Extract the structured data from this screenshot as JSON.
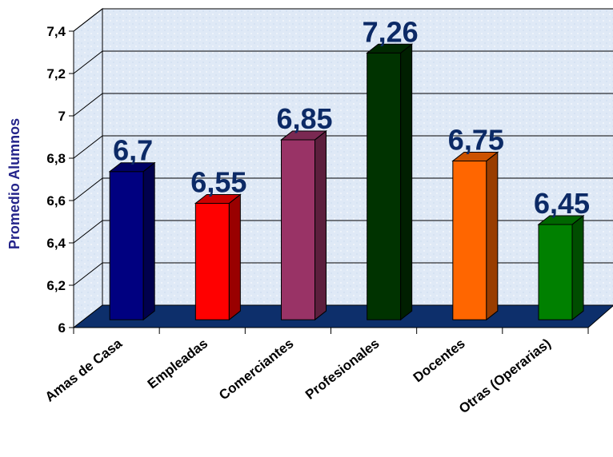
{
  "chart_data": {
    "type": "bar",
    "categories": [
      "Amas de Casa",
      "Empleadas",
      "Comerciantes",
      "Profesionales",
      "Docentes",
      "Otras (Operarias)"
    ],
    "values": [
      6.7,
      6.55,
      6.85,
      7.26,
      6.75,
      6.45
    ],
    "data_labels": [
      "6,7",
      "6,55",
      "6,85",
      "7,26",
      "6,75",
      "6,45"
    ],
    "ylabel": "Promedio Alumnos",
    "xlabel": "",
    "title": "",
    "ylim": [
      6,
      7.4
    ],
    "yticks": [
      6,
      6.2,
      6.4,
      6.6,
      6.8,
      7,
      7.2,
      7.4
    ],
    "ytick_labels": [
      "6",
      "6,2",
      "6,4",
      "6,6",
      "6,8",
      "7",
      "7,2",
      "7,4"
    ],
    "bar_colors": [
      "#000080",
      "#ff0000",
      "#993366",
      "#003300",
      "#ff6600",
      "#008000"
    ],
    "wall_color": "#dde8f5",
    "floor_color": "#0d2f6b",
    "gridlines": true,
    "legend": false,
    "style": "3d"
  }
}
